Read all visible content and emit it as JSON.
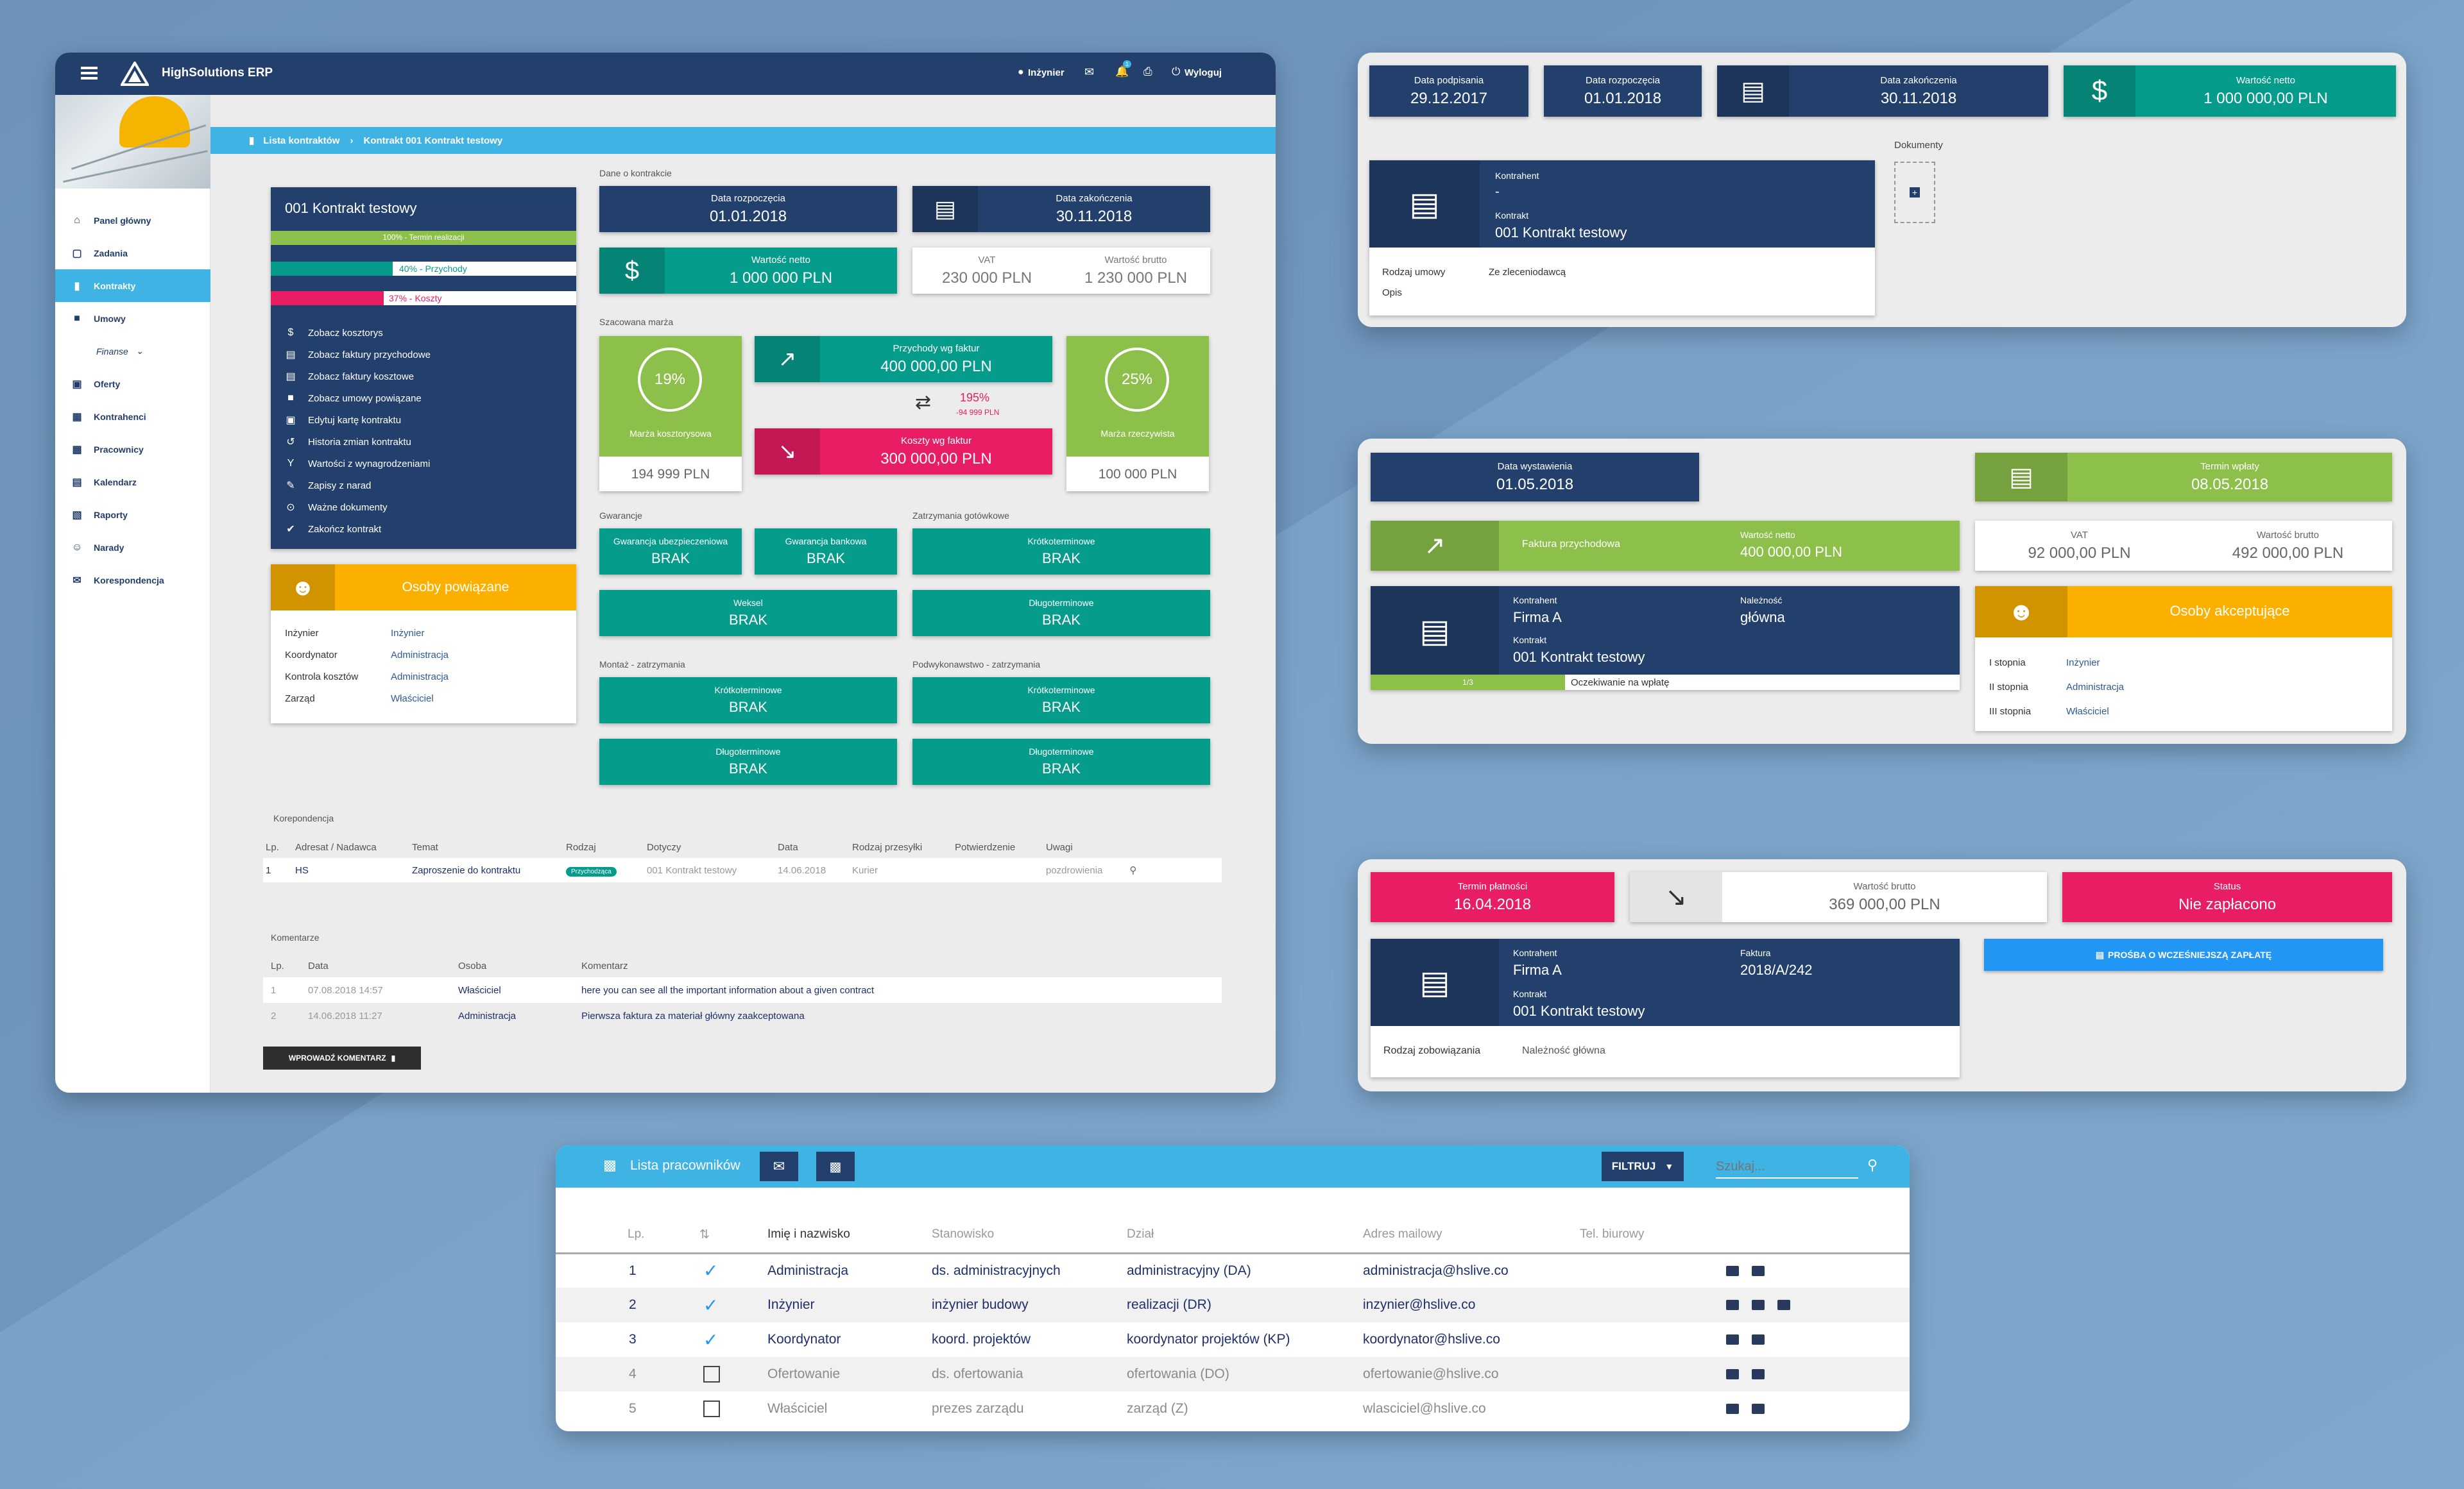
{
  "app": {
    "name": "HighSolutions ERP",
    "user": "Inżynier",
    "logout": "Wyloguj",
    "notif_count": "1"
  },
  "breadcrumb": {
    "root": "Lista kontraktów",
    "sep": "›",
    "current": "Kontrakt 001 Kontrakt testowy"
  },
  "sidebar": {
    "items": [
      {
        "label": "Panel główny",
        "icon": "home-icon"
      },
      {
        "label": "Zadania",
        "icon": "chat-icon"
      },
      {
        "label": "Kontrakty",
        "icon": "book-icon",
        "active": true
      },
      {
        "label": "Umowy",
        "icon": "briefcase-icon"
      },
      {
        "label": "Finanse",
        "icon": "money-icon"
      },
      {
        "label": "Oferty",
        "icon": "offer-icon"
      },
      {
        "label": "Kontrahenci",
        "icon": "building-icon"
      },
      {
        "label": "Pracownicy",
        "icon": "badge-icon"
      },
      {
        "label": "Kalendarz",
        "icon": "calendar-icon"
      },
      {
        "label": "Raporty",
        "icon": "report-icon"
      },
      {
        "label": "Narady",
        "icon": "people-icon"
      },
      {
        "label": "Korespondencja",
        "icon": "mail-icon"
      }
    ]
  },
  "contract": {
    "title": "001 Kontrakt testowy",
    "progress_time": {
      "label": "100% - Termin realizacji",
      "value": 1.0
    },
    "progress_income": {
      "label": "40% - Przychody",
      "value": 0.4
    },
    "progress_costs": {
      "label": "37% - Koszty",
      "value": 0.37
    },
    "menu": [
      "Zobacz kosztorys",
      "Zobacz faktury przychodowe",
      "Zobacz faktury kosztowe",
      "Zobacz umowy powiązane",
      "Edytuj kartę kontraktu",
      "Historia zmian kontraktu",
      "Wartości z wynagrodzeniami",
      "Zapisy z narad",
      "Ważne dokumenty",
      "Zakończ kontrakt"
    ]
  },
  "related": {
    "title": "Osoby powiązane",
    "rows": [
      {
        "k": "Inżynier",
        "v": "Inżynier"
      },
      {
        "k": "Koordynator",
        "v": "Administracja"
      },
      {
        "k": "Kontrola kosztów",
        "v": "Administracja"
      },
      {
        "k": "Zarząd",
        "v": "Właściciel"
      }
    ]
  },
  "details": {
    "section": "Dane o kontrakcie",
    "start_label": "Data rozpoczęcia",
    "start": "01.01.2018",
    "end_label": "Data zakończenia",
    "end": "30.11.2018",
    "net_label": "Wartość netto",
    "net": "1 000 000 PLN",
    "vat_label": "VAT",
    "vat": "230 000 PLN",
    "gross_label": "Wartość brutto",
    "gross": "1 230 000 PLN"
  },
  "margin": {
    "section": "Szacowana marża",
    "cost_pct": "19%",
    "cost_label": "Marża kosztorysowa",
    "cost_value": "194 999 PLN",
    "real_pct": "25%",
    "real_label": "Marża rzeczywista",
    "real_value": "100 000 PLN",
    "income_label": "Przychody wg faktur",
    "income": "400 000,00 PLN",
    "costs_label": "Koszty wg faktur",
    "costs": "300 000,00 PLN",
    "diff_pct": "195%",
    "diff_val": "-94 999 PLN"
  },
  "guarantees": {
    "section": "Gwarancje",
    "insurance": "Gwarancja ubezpieczeniowa",
    "bank": "Gwarancja bankowa",
    "bill": "Weksel",
    "none": "BRAK"
  },
  "retentions": {
    "section": "Zatrzymania gotówkowe",
    "short": "Krótkoterminowe",
    "long": "Długoterminowe"
  },
  "assembly": {
    "section": "Montaż - zatrzymania"
  },
  "subcontract": {
    "section": "Podwykonawstwo - zatrzymania"
  },
  "correspondence": {
    "section": "Korepondencja",
    "headers": [
      "Lp.",
      "Adresat / Nadawca",
      "Temat",
      "Rodzaj",
      "Dotyczy",
      "Data",
      "Rodzaj przesyłki",
      "Potwierdzenie",
      "Uwagi"
    ],
    "rows": [
      {
        "lp": "1",
        "who": "HS",
        "topic": "Zaproszenie do kontraktu",
        "type": "Przychodząca",
        "about": "001 Kontrakt testowy",
        "date": "14.06.2018",
        "ship": "Kurier",
        "confirm": "",
        "note": "pozdrowienia"
      }
    ]
  },
  "comments": {
    "section": "Komentarze",
    "headers": [
      "Lp.",
      "Data",
      "Osoba",
      "Komentarz"
    ],
    "rows": [
      {
        "lp": "1",
        "date": "07.08.2018 14:57",
        "who": "Właściciel",
        "text": "here you can see all the important information about a given contract"
      },
      {
        "lp": "2",
        "date": "14.06.2018 11:27",
        "who": "Administracja",
        "text": "Pierwsza faktura za materiał główny zaakceptowana"
      }
    ],
    "button": "WPROWADŹ KOMENTARZ"
  },
  "agreement": {
    "sign_label": "Data podpisania",
    "sign": "29.12.2017",
    "start_label": "Data rozpoczęcia",
    "start": "01.01.2018",
    "end_label": "Data zakończenia",
    "end": "30.11.2018",
    "net_label": "Wartość netto",
    "net": "1 000 000,00 PLN",
    "contractor_label": "Kontrahent",
    "contractor": "-",
    "contract_label": "Kontrakt",
    "contract": "001 Kontrakt testowy",
    "type_label": "Rodzaj umowy",
    "type": "Ze zleceniodawcą",
    "desc_label": "Opis",
    "docs_label": "Dokumenty"
  },
  "invoice": {
    "issue_label": "Data wystawienia",
    "issue": "01.05.2018",
    "pay_label": "Termin wpłaty",
    "pay": "08.05.2018",
    "kind": "Faktura przychodowa",
    "net_label": "Wartość netto",
    "net": "400 000,00 PLN",
    "vat_label": "VAT",
    "vat": "92 000,00 PLN",
    "gross_label": "Wartość brutto",
    "gross": "492 000,00 PLN",
    "contractor_label": "Kontrahent",
    "contractor": "Firma A",
    "due_label": "Należność",
    "due": "główna",
    "contract_label": "Kontrakt",
    "contract": "001 Kontrakt testowy",
    "progress_label": "1/3",
    "progress": 0.33,
    "status": "Oczekiwanie na wpłatę",
    "acceptors_title": "Osoby akceptujące",
    "acceptors": [
      {
        "k": "I stopnia",
        "v": "Inżynier"
      },
      {
        "k": "II stopnia",
        "v": "Administracja"
      },
      {
        "k": "III stopnia",
        "v": "Właściciel"
      }
    ]
  },
  "liability": {
    "due_label": "Termin płatności",
    "due": "16.04.2018",
    "gross_label": "Wartość brutto",
    "gross": "369 000,00 PLN",
    "status_label": "Status",
    "status": "Nie zapłacono",
    "contractor_label": "Kontrahent",
    "contractor": "Firma A",
    "invoice_label": "Faktura",
    "invoice": "2018/A/242",
    "contract_label": "Kontrakt",
    "contract": "001 Kontrakt testowy",
    "kind_label": "Rodzaj zobowiązania",
    "kind": "Należność główna",
    "button": "PROŚBA O WCZEŚNIEJSZĄ ZAPŁATĘ"
  },
  "employees": {
    "title": "Lista pracowników",
    "filter": "FILTRUJ",
    "search_placeholder": "Szukaj...",
    "headers": [
      "Lp.",
      "",
      "Imię i nazwisko",
      "Stanowisko",
      "Dział",
      "Adres mailowy",
      "Tel. biurowy"
    ],
    "rows": [
      {
        "lp": "1",
        "checked": true,
        "name": "Administracja",
        "position": "ds. administracyjnych",
        "dept": "administracyjny (DA)",
        "email": "administracja@hslive.co"
      },
      {
        "lp": "2",
        "checked": true,
        "name": "Inżynier",
        "position": "inżynier budowy",
        "dept": "realizacji (DR)",
        "email": "inzynier@hslive.co"
      },
      {
        "lp": "3",
        "checked": true,
        "name": "Koordynator",
        "position": "koord. projektów",
        "dept": "koordynator projektów (KP)",
        "email": "koordynator@hslive.co"
      },
      {
        "lp": "4",
        "checked": false,
        "name": "Ofertowanie",
        "position": "ds. ofertowania",
        "dept": "ofertowania (DO)",
        "email": "ofertowanie@hslive.co"
      },
      {
        "lp": "5",
        "checked": false,
        "name": "Właściciel",
        "position": "prezes zarządu",
        "dept": "zarząd (Z)",
        "email": "wlasciciel@hslive.co"
      }
    ]
  },
  "colors": {
    "navy": "#23406d",
    "teal": "#069c8c",
    "green": "#8cc04b",
    "pink": "#e91d63",
    "amber": "#fbb000",
    "lightblue": "#3eb3e4"
  }
}
